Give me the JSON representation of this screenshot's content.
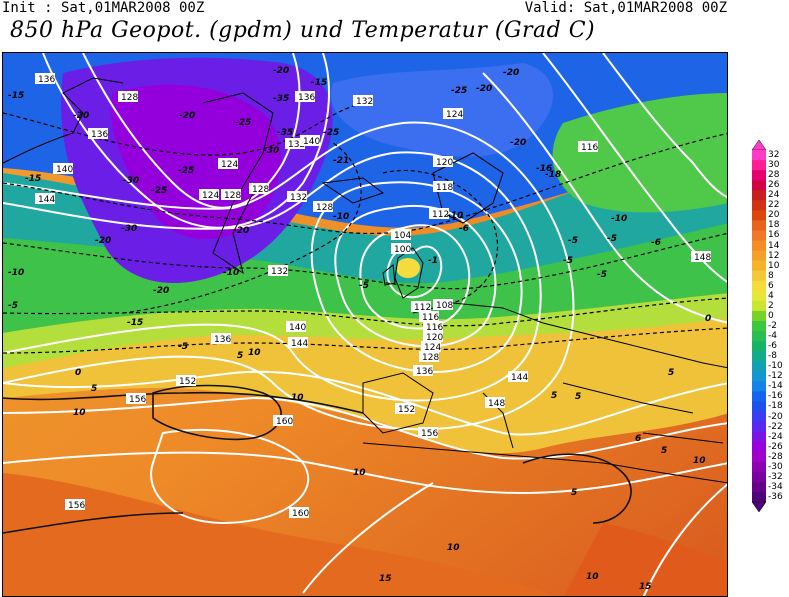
{
  "header": {
    "init": "Init : Sat,01MAR2008 00Z",
    "valid": "Valid: Sat,01MAR2008 00Z",
    "title": "850 hPa Geopot. (gpdm) und Temperatur (Grad C)"
  },
  "colorbar": {
    "labels": [
      "32",
      "30",
      "28",
      "26",
      "24",
      "22",
      "20",
      "18",
      "16",
      "14",
      "12",
      "10",
      "8",
      "6",
      "4",
      "2",
      "0",
      "-2",
      "-4",
      "-6",
      "-8",
      "-10",
      "-12",
      "-14",
      "-16",
      "-18",
      "-20",
      "-22",
      "-24",
      "-26",
      "-28",
      "-30",
      "-32",
      "-34",
      "-36"
    ],
    "colors": [
      "#ff3cc8",
      "#ff1e96",
      "#e6006e",
      "#d20046",
      "#c81e1e",
      "#d23214",
      "#dc460a",
      "#e6641e",
      "#f07828",
      "#f58c28",
      "#f5a028",
      "#f5b428",
      "#f5c83c",
      "#f5dc3c",
      "#e6e63c",
      "#c8e632",
      "#78d228",
      "#3cc83c",
      "#28be50",
      "#14b464",
      "#14aa8c",
      "#14a0b4",
      "#1496d2",
      "#1482e6",
      "#1464f0",
      "#1e50f0",
      "#3c3cf0",
      "#5a28f0",
      "#7814e6",
      "#9600dc",
      "#a000c8",
      "#8c00b4",
      "#7800a0",
      "#64008c",
      "#500078"
    ]
  },
  "map": {
    "geopotential_labels": [
      "136",
      "128",
      "136",
      "140",
      "144",
      "124",
      "124",
      "132",
      "128",
      "128",
      "132",
      "136",
      "124",
      "120",
      "116",
      "112",
      "104",
      "100",
      "108",
      "116",
      "120",
      "124",
      "128",
      "136",
      "140",
      "144",
      "148",
      "152",
      "156",
      "160",
      "152",
      "156",
      "156",
      "160",
      "136",
      "132",
      "140",
      "128",
      "132",
      "144",
      "148",
      "118",
      "116",
      "112"
    ],
    "temperature_labels": [
      "-15",
      "-20",
      "-25",
      "-30",
      "-25",
      "-20",
      "-15",
      "-10",
      "-5",
      "0",
      "5",
      "10",
      "5",
      "10",
      "10",
      "5",
      "10",
      "-20",
      "-15",
      "-35",
      "-25",
      "-20",
      "-35",
      "-30",
      "-25",
      "-21",
      "-20",
      "-10",
      "-5",
      "-6",
      "-10",
      "-5",
      "-6",
      "-5",
      "-5",
      "-20",
      "-20",
      "-16",
      "-10",
      "-15",
      "-20",
      "-30",
      "-20",
      "-25",
      "-5",
      "-10",
      "5",
      "5",
      "10",
      "15",
      "-1",
      "-18",
      "-5",
      "0",
      "6",
      "5",
      "10",
      "15",
      "10",
      "5"
    ]
  }
}
